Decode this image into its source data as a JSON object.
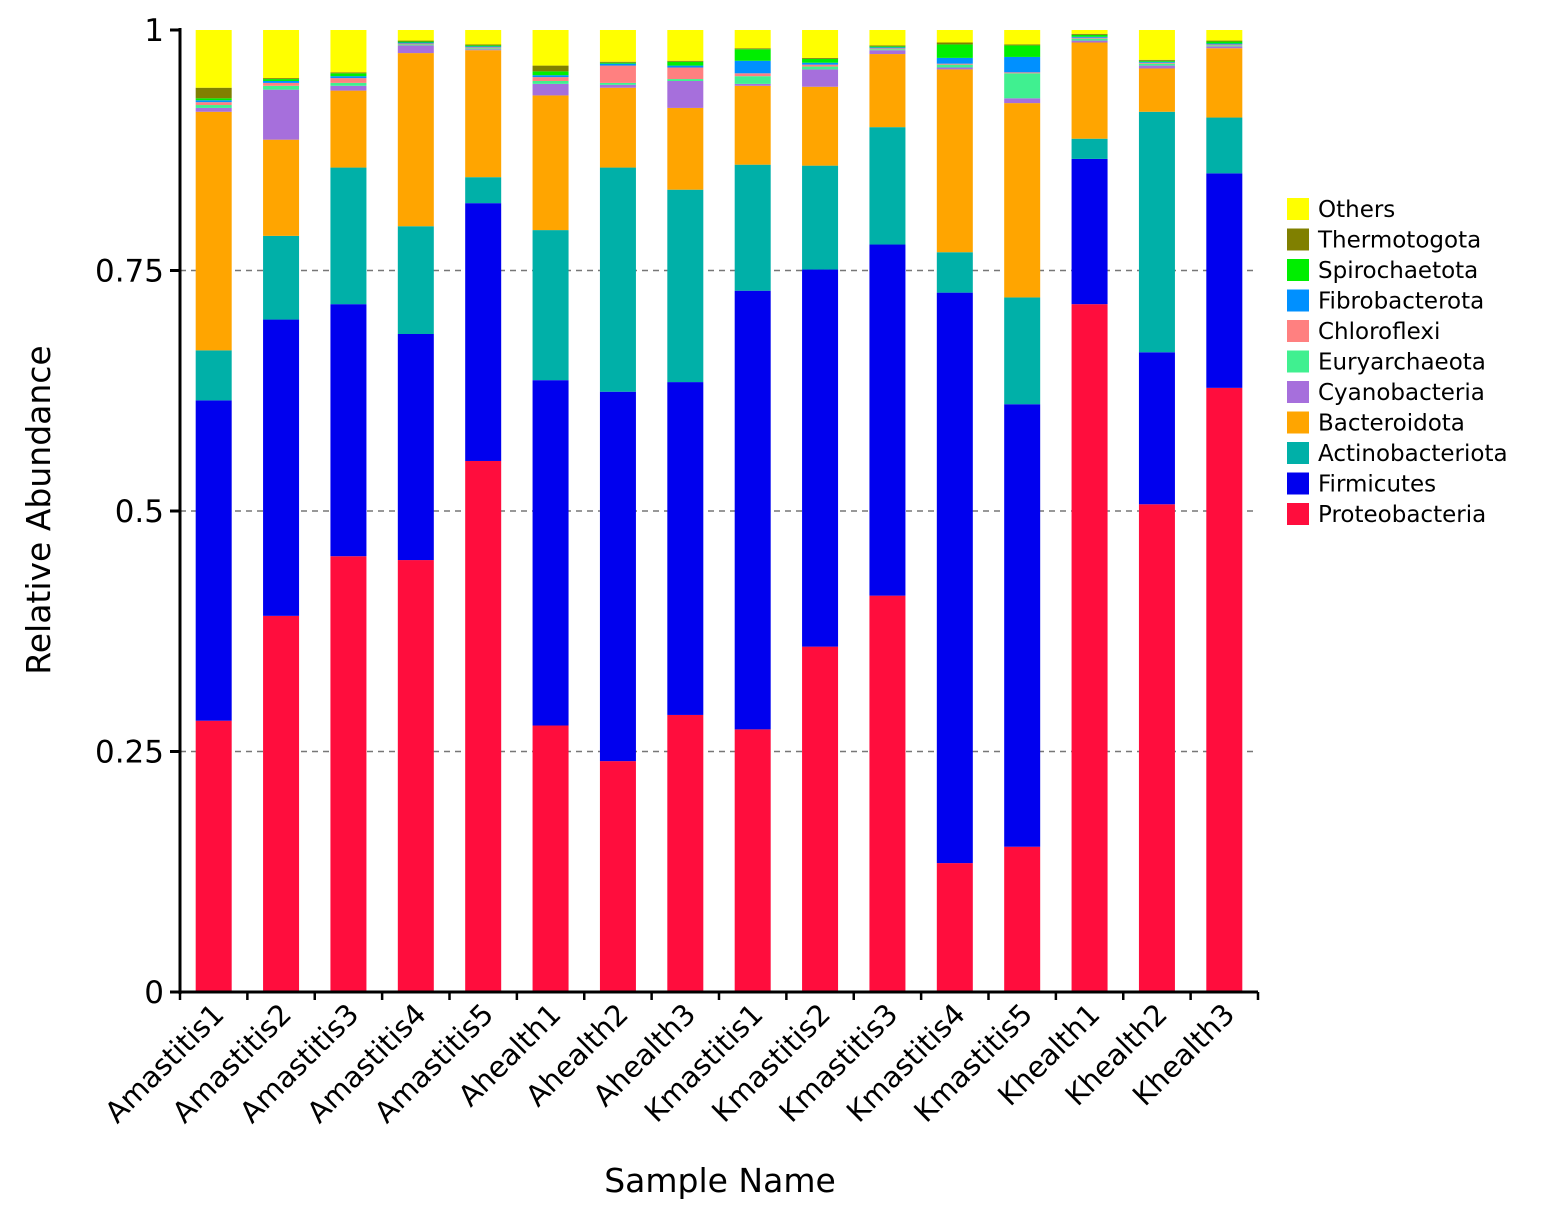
{
  "chart_data": {
    "type": "bar",
    "stacked": true,
    "title": "",
    "xlabel": "Sample Name",
    "ylabel": "Relative Abundance",
    "ylim": [
      0,
      1
    ],
    "yticks": [
      {
        "value": 0,
        "label": "0"
      },
      {
        "value": 0.25,
        "label": "0.25"
      },
      {
        "value": 0.5,
        "label": "0.5"
      },
      {
        "value": 0.75,
        "label": "0.75"
      },
      {
        "value": 1,
        "label": "1"
      }
    ],
    "gridlines": [
      0.25,
      0.5,
      0.75
    ],
    "legend_position": "right",
    "categories": [
      "Amastitis1",
      "Amastitis2",
      "Amastitis3",
      "Amastitis4",
      "Amastitis5",
      "Ahealth1",
      "Ahealth2",
      "Ahealth3",
      "Kmastitis1",
      "Kmastitis2",
      "Kmastitis3",
      "Kmastitis4",
      "Kmastitis5",
      "Khealth1",
      "Khealth2",
      "Khealth3"
    ],
    "series": [
      {
        "name": "Proteobacteria",
        "color": "#ff0d3d",
        "values": [
          0.282,
          0.391,
          0.453,
          0.449,
          0.552,
          0.277,
          0.24,
          0.288,
          0.273,
          0.359,
          0.412,
          0.134,
          0.151,
          0.715,
          0.507,
          0.628
        ]
      },
      {
        "name": "Firmicutes",
        "color": "#0000ee",
        "values": [
          0.333,
          0.308,
          0.262,
          0.235,
          0.268,
          0.359,
          0.384,
          0.346,
          0.456,
          0.392,
          0.365,
          0.593,
          0.46,
          0.151,
          0.158,
          0.223
        ]
      },
      {
        "name": "Actinobacteriota",
        "color": "#00b0a8",
        "values": [
          0.052,
          0.087,
          0.142,
          0.112,
          0.027,
          0.156,
          0.233,
          0.2,
          0.131,
          0.108,
          0.122,
          0.042,
          0.111,
          0.021,
          0.25,
          0.058
        ]
      },
      {
        "name": "Bacteroidota",
        "color": "#ffa500",
        "values": [
          0.248,
          0.1,
          0.08,
          0.18,
          0.132,
          0.14,
          0.083,
          0.085,
          0.082,
          0.082,
          0.076,
          0.19,
          0.202,
          0.1,
          0.045,
          0.072
        ]
      },
      {
        "name": "Cyanobacteria",
        "color": "#a66fdc",
        "values": [
          0.004,
          0.052,
          0.005,
          0.008,
          0.001,
          0.012,
          0.003,
          0.028,
          0.002,
          0.018,
          0.004,
          0.002,
          0.005,
          0.002,
          0.003,
          0.002
        ]
      },
      {
        "name": "Euryarchaeota",
        "color": "#40f090",
        "values": [
          0.003,
          0.004,
          0.003,
          0.001,
          0.001,
          0.003,
          0.002,
          0.002,
          0.008,
          0.003,
          0.001,
          0.003,
          0.026,
          0.002,
          0.002,
          0.001
        ]
      },
      {
        "name": "Chloroflexi",
        "color": "#ff8080",
        "values": [
          0.003,
          0.003,
          0.005,
          0.001,
          0.001,
          0.004,
          0.018,
          0.012,
          0.003,
          0.002,
          0.001,
          0.001,
          0.001,
          0.001,
          0.001,
          0.001
        ]
      },
      {
        "name": "Fibrobacterota",
        "color": "#0090ff",
        "values": [
          0.002,
          0.002,
          0.002,
          0.001,
          0.001,
          0.002,
          0.002,
          0.002,
          0.013,
          0.002,
          0.001,
          0.006,
          0.016,
          0.001,
          0.001,
          0.001
        ]
      },
      {
        "name": "Spirochaetota",
        "color": "#00ee00",
        "values": [
          0.002,
          0.002,
          0.003,
          0.001,
          0.001,
          0.004,
          0.001,
          0.004,
          0.012,
          0.004,
          0.001,
          0.014,
          0.012,
          0.002,
          0.001,
          0.002
        ]
      },
      {
        "name": "Thermotogota",
        "color": "#808000",
        "values": [
          0.011,
          0.001,
          0.001,
          0.001,
          0.001,
          0.006,
          0.001,
          0.001,
          0.001,
          0.001,
          0.001,
          0.002,
          0.001,
          0.001,
          0.001,
          0.001
        ]
      },
      {
        "name": "Others",
        "color": "#ffff00",
        "values": [
          0.06,
          0.05,
          0.044,
          0.011,
          0.015,
          0.037,
          0.033,
          0.032,
          0.019,
          0.029,
          0.016,
          0.013,
          0.015,
          0.004,
          0.031,
          0.011
        ]
      }
    ]
  }
}
